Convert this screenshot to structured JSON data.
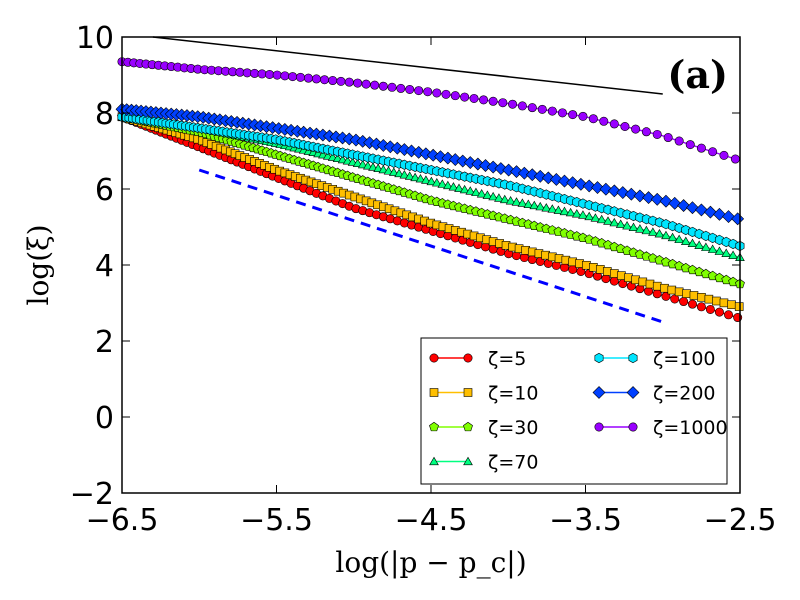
{
  "chart_data": {
    "type": "line",
    "panel_label": "(a)",
    "xlabel": "log(|p − p_c|)",
    "ylabel": "log(ξ)",
    "xlim": [
      -6.5,
      -2.5
    ],
    "ylim": [
      -2,
      10
    ],
    "xticks": [
      -6.5,
      -5.5,
      -4.5,
      -3.5,
      -2.5
    ],
    "yticks": [
      -2,
      0,
      2,
      4,
      6,
      8,
      10
    ],
    "xtick_labels": [
      "−6.5",
      "−5.5",
      "−4.5",
      "−3.5",
      "−2.5"
    ],
    "ytick_labels": [
      "−2",
      "0",
      "2",
      "4",
      "6",
      "8",
      "10"
    ],
    "legend_position": "lower-right",
    "series": [
      {
        "name": "ζ=5",
        "color": "#ff0000",
        "marker": "circle",
        "x": [
          -6.5,
          -6.0,
          -5.5,
          -5.0,
          -4.5,
          -4.0,
          -3.5,
          -3.0,
          -2.5
        ],
        "values": [
          7.9,
          7.1,
          6.3,
          5.5,
          4.9,
          4.3,
          3.8,
          3.2,
          2.6
        ]
      },
      {
        "name": "ζ=10",
        "color": "#ffbf00",
        "marker": "square",
        "x": [
          -6.5,
          -6.0,
          -5.5,
          -5.0,
          -4.5,
          -4.0,
          -3.5,
          -3.0,
          -2.5
        ],
        "values": [
          7.9,
          7.3,
          6.5,
          5.8,
          5.1,
          4.5,
          4.0,
          3.4,
          2.9
        ]
      },
      {
        "name": "ζ=30",
        "color": "#80ff00",
        "marker": "pentagon",
        "x": [
          -6.5,
          -6.0,
          -5.5,
          -5.0,
          -4.5,
          -4.0,
          -3.5,
          -3.0,
          -2.5
        ],
        "values": [
          7.9,
          7.5,
          6.9,
          6.3,
          5.7,
          5.2,
          4.7,
          4.1,
          3.5
        ]
      },
      {
        "name": "ζ=70",
        "color": "#00ff80",
        "marker": "triangle",
        "x": [
          -6.5,
          -6.0,
          -5.5,
          -5.0,
          -4.5,
          -4.0,
          -3.5,
          -3.0,
          -2.5
        ],
        "values": [
          7.9,
          7.6,
          7.2,
          6.7,
          6.2,
          5.7,
          5.3,
          4.8,
          4.2
        ]
      },
      {
        "name": "ζ=100",
        "color": "#00e5ff",
        "marker": "hexagon",
        "x": [
          -6.5,
          -6.0,
          -5.5,
          -5.0,
          -4.5,
          -4.0,
          -3.5,
          -3.0,
          -2.5
        ],
        "values": [
          7.9,
          7.6,
          7.3,
          6.9,
          6.5,
          6.1,
          5.6,
          5.1,
          4.5
        ]
      },
      {
        "name": "ζ=200",
        "color": "#0040ff",
        "marker": "diamond",
        "x": [
          -6.5,
          -6.0,
          -5.5,
          -5.0,
          -4.5,
          -4.0,
          -3.5,
          -3.0,
          -2.5
        ],
        "values": [
          8.1,
          7.9,
          7.6,
          7.3,
          6.9,
          6.5,
          6.1,
          5.7,
          5.2
        ]
      },
      {
        "name": "ζ=1000",
        "color": "#9900ff",
        "marker": "circle",
        "x": [
          -6.5,
          -6.0,
          -5.5,
          -5.0,
          -4.5,
          -4.0,
          -3.5,
          -3.0,
          -2.5
        ],
        "values": [
          9.35,
          9.15,
          9.0,
          8.8,
          8.55,
          8.25,
          7.9,
          7.4,
          6.75
        ]
      }
    ],
    "reference_lines": [
      {
        "name": "solid-reference",
        "color": "#000000",
        "style": "solid",
        "x": [
          -6.3,
          -3.0
        ],
        "values": [
          10.0,
          8.5
        ]
      },
      {
        "name": "dashed-reference",
        "color": "#0000ff",
        "style": "dashed",
        "x": [
          -6.0,
          -3.0
        ],
        "values": [
          6.5,
          2.5
        ]
      }
    ]
  }
}
